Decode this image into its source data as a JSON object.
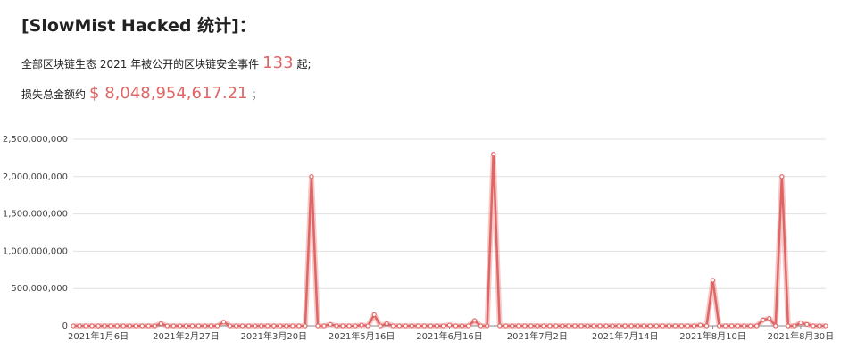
{
  "header": {
    "title": "[SlowMist Hacked 统计]：",
    "line1": {
      "text": "全部区块链生态 2021 年被公开的区块链安全事件",
      "count": "133",
      "suffix": "起;"
    },
    "line2": {
      "text": "损失总金额约",
      "amount": "$ 8,048,954,617.21",
      "suffix": "；"
    }
  },
  "chart_data": {
    "type": "line",
    "color": "#e06666",
    "grid": true,
    "markers": true,
    "ylim": [
      0,
      2500000000
    ],
    "yticks": [
      0,
      {
        "value": 500000000,
        "label": "500,000,000"
      },
      {
        "value": 1000000000,
        "label": "1,000,000,000"
      },
      {
        "value": 1500000000,
        "label": "1,500,000,000"
      },
      {
        "value": 2000000000,
        "label": "2,000,000,000"
      },
      {
        "value": 2500000000,
        "label": "2,500,000,000"
      }
    ],
    "categories": [
      null,
      null,
      null,
      null,
      "2021年1月6日",
      null,
      null,
      null,
      null,
      null,
      null,
      null,
      null,
      null,
      null,
      null,
      null,
      null,
      "2021年2月27日",
      null,
      null,
      null,
      null,
      null,
      null,
      null,
      null,
      null,
      null,
      null,
      null,
      null,
      "2021年3月20日",
      null,
      null,
      null,
      null,
      null,
      null,
      null,
      null,
      null,
      null,
      null,
      null,
      null,
      "2021年5月16日",
      null,
      null,
      null,
      null,
      null,
      null,
      null,
      null,
      null,
      null,
      null,
      null,
      null,
      "2021年6月16日",
      null,
      null,
      null,
      null,
      null,
      null,
      null,
      null,
      null,
      null,
      null,
      null,
      null,
      "2021年7月2日",
      null,
      null,
      null,
      null,
      null,
      null,
      null,
      null,
      null,
      null,
      null,
      null,
      null,
      "2021年7月14日",
      null,
      null,
      null,
      null,
      null,
      null,
      null,
      null,
      null,
      null,
      null,
      null,
      null,
      "2021年8月10日",
      null,
      null,
      null,
      null,
      null,
      null,
      null,
      null,
      null,
      null,
      null,
      null,
      null,
      "2021年8月30日",
      null,
      null,
      null,
      null
    ],
    "values": [
      0,
      0,
      0,
      0,
      0,
      0,
      0,
      0,
      0,
      0,
      0,
      0,
      0,
      0,
      30000000,
      0,
      0,
      0,
      0,
      0,
      0,
      0,
      0,
      0,
      50000000,
      0,
      0,
      0,
      0,
      0,
      0,
      0,
      0,
      0,
      0,
      0,
      0,
      0,
      2000000000,
      0,
      0,
      20000000,
      0,
      0,
      0,
      0,
      10000000,
      0,
      150000000,
      0,
      30000000,
      0,
      0,
      0,
      0,
      0,
      0,
      0,
      0,
      0,
      10000000,
      0,
      0,
      0,
      70000000,
      0,
      0,
      2300000000,
      0,
      0,
      0,
      0,
      0,
      0,
      0,
      0,
      0,
      0,
      0,
      0,
      0,
      0,
      0,
      0,
      0,
      0,
      0,
      0,
      0,
      0,
      0,
      0,
      0,
      0,
      0,
      0,
      0,
      0,
      0,
      0,
      10000000,
      0,
      610000000,
      0,
      0,
      0,
      0,
      0,
      0,
      0,
      80000000,
      100000000,
      0,
      2000000000,
      0,
      0,
      40000000,
      20000000,
      0,
      0,
      0
    ]
  }
}
